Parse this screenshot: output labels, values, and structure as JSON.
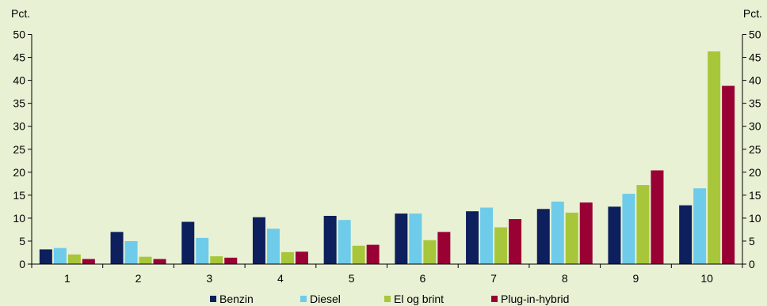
{
  "chart_data": {
    "type": "bar",
    "y_unit_left": "Pct.",
    "y_unit_right": "Pct.",
    "categories": [
      "1",
      "2",
      "3",
      "4",
      "5",
      "6",
      "7",
      "8",
      "9",
      "10"
    ],
    "ylim": [
      0,
      50
    ],
    "yticks": [
      0,
      5,
      10,
      15,
      20,
      25,
      30,
      35,
      40,
      45,
      50
    ],
    "grid": false,
    "legend_position": "bottom",
    "series": [
      {
        "name": "Benzin",
        "color": "#0d1f5c",
        "values": [
          3.2,
          7.0,
          9.2,
          10.2,
          10.5,
          11.0,
          11.5,
          12.0,
          12.5,
          12.8
        ]
      },
      {
        "name": "Diesel",
        "color": "#6ecbea",
        "values": [
          3.5,
          5.0,
          5.7,
          7.7,
          9.6,
          11.0,
          12.3,
          13.6,
          15.3,
          16.5
        ]
      },
      {
        "name": "El og brint",
        "color": "#a8c63a",
        "values": [
          2.1,
          1.6,
          1.7,
          2.6,
          4.0,
          5.2,
          8.0,
          11.2,
          17.2,
          46.3
        ]
      },
      {
        "name": "Plug-in-hybrid",
        "color": "#990033",
        "values": [
          1.1,
          1.1,
          1.4,
          2.7,
          4.2,
          7.0,
          9.8,
          13.4,
          20.4,
          38.8
        ]
      }
    ]
  }
}
